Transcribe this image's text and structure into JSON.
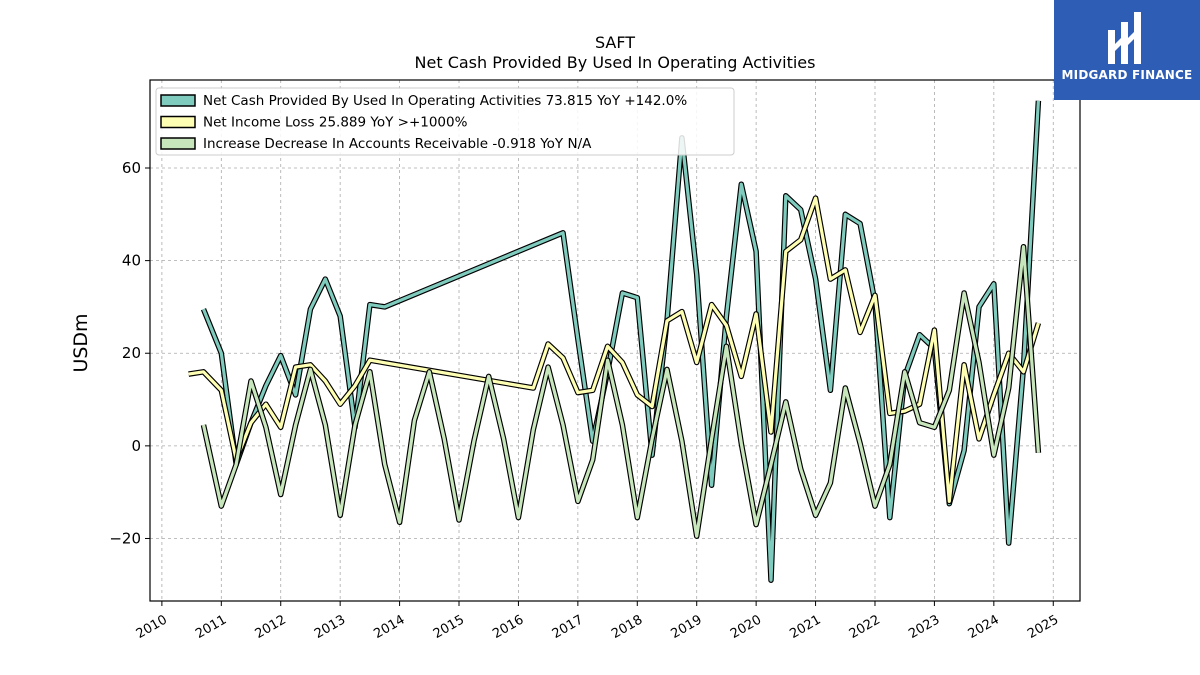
{
  "chart_data": {
    "type": "line",
    "title": "SAFT",
    "subtitle": "Net Cash Provided By Used In Operating Activities",
    "ylabel": "USDm",
    "xlabel": "",
    "xlim": [
      2009.8,
      2025.45
    ],
    "ylim": [
      -33.5,
      79
    ],
    "yticks": [
      -20,
      0,
      20,
      40,
      60
    ],
    "ytick_labels": [
      "−20",
      "0",
      "20",
      "40",
      "60"
    ],
    "xticks": [
      2010,
      2011,
      2012,
      2013,
      2014,
      2015,
      2016,
      2017,
      2018,
      2019,
      2020,
      2021,
      2022,
      2023,
      2024,
      2025
    ],
    "xtick_labels": [
      "2010",
      "2011",
      "2012",
      "2013",
      "2014",
      "2015",
      "2016",
      "2017",
      "2018",
      "2019",
      "2020",
      "2021",
      "2022",
      "2023",
      "2024",
      "2025"
    ],
    "grid": true,
    "legend_position": "top-left",
    "series": [
      {
        "name": "Net Cash Provided By Used In Operating Activities  73.815 YoY +142.0%",
        "color": "#7fcbbd",
        "x": [
          2010.7,
          2011.0,
          2011.25,
          2011.5,
          2011.75,
          2012.0,
          2012.25,
          2012.5,
          2012.75,
          2013.0,
          2013.25,
          2013.5,
          2013.75,
          2016.75,
          2017.0,
          2017.25,
          2017.5,
          2017.75,
          2018.0,
          2018.25,
          2018.5,
          2018.75,
          2019.0,
          2019.25,
          2019.5,
          2019.75,
          2020.0,
          2020.25,
          2020.5,
          2020.75,
          2021.0,
          2021.25,
          2021.5,
          2021.75,
          2022.0,
          2022.25,
          2022.5,
          2022.75,
          2023.0,
          2023.25,
          2023.5,
          2023.75,
          2024.0,
          2024.25,
          2024.5,
          2024.75
        ],
        "y": [
          29.5,
          20,
          -4,
          5,
          13,
          19.5,
          11,
          29.5,
          36,
          28,
          4,
          30.5,
          30,
          46,
          23,
          1,
          16,
          33,
          32,
          -2,
          27,
          66.5,
          37,
          -8.5,
          28,
          56.5,
          42,
          -29,
          54,
          51,
          36,
          12,
          50,
          48,
          31,
          -15.5,
          15,
          24,
          21,
          -12.5,
          -1,
          30,
          35,
          -21,
          17,
          74.5
        ]
      },
      {
        "name": "Net Income Loss  25.889 YoY >+1000%",
        "color": "#ffffb3",
        "x": [
          2010.45,
          2010.7,
          2011.0,
          2011.25,
          2011.5,
          2011.75,
          2012.0,
          2012.25,
          2012.5,
          2012.75,
          2013.0,
          2013.25,
          2013.5,
          2016.25,
          2016.5,
          2016.75,
          2017.0,
          2017.25,
          2017.5,
          2017.75,
          2018.0,
          2018.25,
          2018.5,
          2018.75,
          2019.0,
          2019.25,
          2019.5,
          2019.75,
          2020.0,
          2020.25,
          2020.5,
          2020.75,
          2021.0,
          2021.25,
          2021.5,
          2021.75,
          2022.0,
          2022.25,
          2022.5,
          2022.75,
          2023.0,
          2023.25,
          2023.5,
          2023.75,
          2024.0,
          2024.25,
          2024.5,
          2024.75
        ],
        "y": [
          15.5,
          16,
          12,
          -3,
          5,
          9,
          4,
          17,
          17.5,
          14,
          9,
          13,
          18.5,
          12.5,
          22,
          19,
          11.5,
          12,
          21.5,
          18,
          11,
          8.5,
          27,
          29,
          18,
          30.5,
          26,
          15,
          28.5,
          3,
          42,
          44.5,
          53.5,
          36,
          38,
          24.5,
          32.5,
          7,
          7.5,
          9,
          25,
          -12,
          17.5,
          1.5,
          11,
          20,
          16,
          26.5
        ]
      },
      {
        "name": "Increase Decrease In Accounts Receivable  -0.918 YoY N/A",
        "color": "#c8e6bc",
        "x": [
          2010.7,
          2011.0,
          2011.25,
          2011.5,
          2011.75,
          2012.0,
          2012.25,
          2012.5,
          2012.75,
          2013.0,
          2013.25,
          2013.5,
          2013.75,
          2014.0,
          2014.25,
          2014.5,
          2014.75,
          2015.0,
          2015.25,
          2015.5,
          2015.75,
          2016.0,
          2016.25,
          2016.5,
          2016.75,
          2017.0,
          2017.25,
          2017.5,
          2017.75,
          2018.0,
          2018.25,
          2018.5,
          2018.75,
          2019.0,
          2019.25,
          2019.5,
          2019.75,
          2020.0,
          2020.25,
          2020.5,
          2020.75,
          2021.0,
          2021.25,
          2021.5,
          2021.75,
          2022.0,
          2022.25,
          2022.5,
          2022.75,
          2023.0,
          2023.25,
          2023.5,
          2023.75,
          2024.0,
          2024.25,
          2024.5,
          2024.75
        ],
        "y": [
          4.5,
          -13,
          -4,
          14,
          4,
          -10.5,
          4.5,
          16.5,
          4.5,
          -15,
          4.5,
          16,
          -4,
          -16.5,
          5.5,
          16,
          1.5,
          -16,
          1,
          15,
          1.5,
          -15.5,
          3.5,
          17,
          4.5,
          -12,
          -3,
          18.5,
          4.5,
          -15.5,
          1.5,
          16.5,
          1,
          -19.5,
          1.5,
          21.5,
          0.5,
          -17,
          -4,
          9.5,
          -5,
          -15,
          -8,
          12.5,
          0.5,
          -13,
          -4,
          16,
          5,
          4,
          12,
          33,
          18,
          -2,
          12.5,
          43,
          -1.5
        ]
      }
    ]
  },
  "logo": {
    "text": "MIDGARD FINANCE",
    "color": "#2d5db4"
  }
}
